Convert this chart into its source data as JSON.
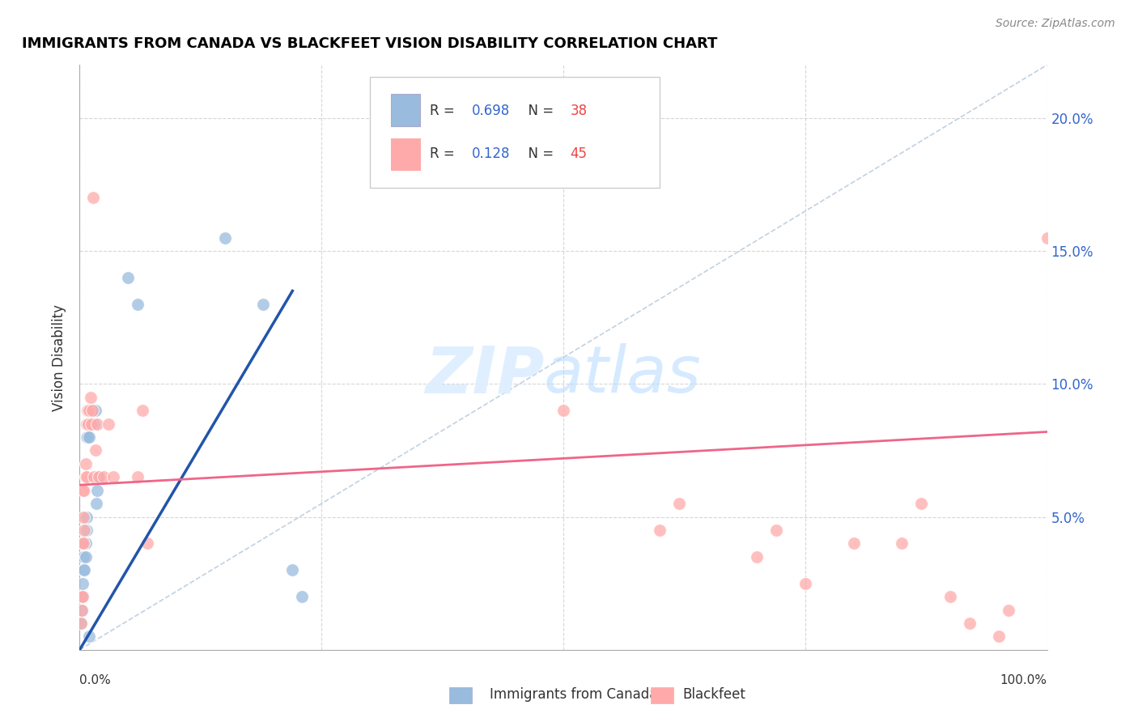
{
  "title": "IMMIGRANTS FROM CANADA VS BLACKFEET VISION DISABILITY CORRELATION CHART",
  "source": "Source: ZipAtlas.com",
  "ylabel": "Vision Disability",
  "blue_color": "#99BBDD",
  "pink_color": "#FFAAAA",
  "blue_line_color": "#2255AA",
  "pink_line_color": "#EE6688",
  "diagonal_color": "#BBCCDD",
  "blue_points": [
    [
      0.001,
      0.01
    ],
    [
      0.002,
      0.015
    ],
    [
      0.002,
      0.02
    ],
    [
      0.003,
      0.02
    ],
    [
      0.003,
      0.025
    ],
    [
      0.004,
      0.03
    ],
    [
      0.004,
      0.035
    ],
    [
      0.005,
      0.03
    ],
    [
      0.005,
      0.04
    ],
    [
      0.006,
      0.035
    ],
    [
      0.006,
      0.04
    ],
    [
      0.007,
      0.045
    ],
    [
      0.007,
      0.05
    ],
    [
      0.007,
      0.08
    ],
    [
      0.008,
      0.08
    ],
    [
      0.008,
      0.085
    ],
    [
      0.009,
      0.085
    ],
    [
      0.009,
      0.09
    ],
    [
      0.01,
      0.08
    ],
    [
      0.01,
      0.09
    ],
    [
      0.011,
      0.085
    ],
    [
      0.011,
      0.09
    ],
    [
      0.012,
      0.09
    ],
    [
      0.013,
      0.085
    ],
    [
      0.013,
      0.09
    ],
    [
      0.014,
      0.09
    ],
    [
      0.015,
      0.085
    ],
    [
      0.016,
      0.09
    ],
    [
      0.017,
      0.055
    ],
    [
      0.018,
      0.06
    ],
    [
      0.02,
      0.065
    ],
    [
      0.05,
      0.14
    ],
    [
      0.06,
      0.13
    ],
    [
      0.15,
      0.155
    ],
    [
      0.19,
      0.13
    ],
    [
      0.22,
      0.03
    ],
    [
      0.23,
      0.02
    ],
    [
      0.01,
      0.005
    ]
  ],
  "pink_points": [
    [
      0.001,
      0.01
    ],
    [
      0.002,
      0.015
    ],
    [
      0.002,
      0.02
    ],
    [
      0.003,
      0.02
    ],
    [
      0.003,
      0.04
    ],
    [
      0.004,
      0.04
    ],
    [
      0.004,
      0.05
    ],
    [
      0.005,
      0.045
    ],
    [
      0.005,
      0.06
    ],
    [
      0.006,
      0.065
    ],
    [
      0.006,
      0.07
    ],
    [
      0.007,
      0.065
    ],
    [
      0.007,
      0.085
    ],
    [
      0.008,
      0.09
    ],
    [
      0.009,
      0.085
    ],
    [
      0.01,
      0.09
    ],
    [
      0.011,
      0.095
    ],
    [
      0.012,
      0.085
    ],
    [
      0.013,
      0.09
    ],
    [
      0.014,
      0.17
    ],
    [
      0.015,
      0.065
    ],
    [
      0.016,
      0.075
    ],
    [
      0.018,
      0.085
    ],
    [
      0.02,
      0.065
    ],
    [
      0.025,
      0.065
    ],
    [
      0.03,
      0.085
    ],
    [
      0.035,
      0.065
    ],
    [
      0.06,
      0.065
    ],
    [
      0.065,
      0.09
    ],
    [
      0.07,
      0.04
    ],
    [
      0.5,
      0.09
    ],
    [
      0.6,
      0.045
    ],
    [
      0.62,
      0.055
    ],
    [
      0.7,
      0.035
    ],
    [
      0.72,
      0.045
    ],
    [
      0.75,
      0.025
    ],
    [
      0.8,
      0.04
    ],
    [
      0.85,
      0.04
    ],
    [
      0.87,
      0.055
    ],
    [
      0.9,
      0.02
    ],
    [
      0.92,
      0.01
    ],
    [
      0.95,
      0.005
    ],
    [
      0.96,
      0.015
    ],
    [
      1.0,
      0.155
    ],
    [
      0.004,
      0.06
    ]
  ],
  "blue_line": [
    [
      0.0,
      0.0
    ],
    [
      0.22,
      0.135
    ]
  ],
  "pink_line": [
    [
      0.0,
      0.062
    ],
    [
      1.0,
      0.082
    ]
  ],
  "xlim": [
    0.0,
    1.0
  ],
  "ylim": [
    0.0,
    0.22
  ],
  "yticks": [
    0.05,
    0.1,
    0.15,
    0.2
  ],
  "yticklabels": [
    "5.0%",
    "10.0%",
    "15.0%",
    "20.0%"
  ]
}
